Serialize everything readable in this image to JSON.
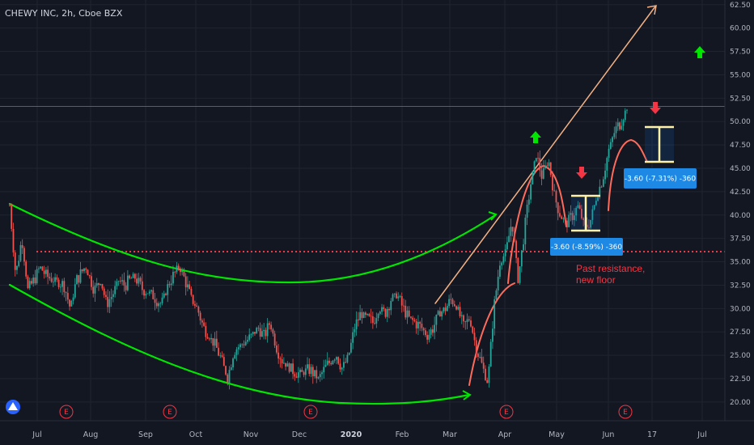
{
  "header": {
    "title": "CHEWY INC, 2h, Cboe BZX"
  },
  "chart_data": {
    "type": "line",
    "title": "CHEWY INC, 2h, Cboe BZX",
    "ylim": [
      18.0,
      63.0
    ],
    "y_ticks": [
      "20.00",
      "22.50",
      "25.00",
      "27.50",
      "30.00",
      "32.50",
      "35.00",
      "37.50",
      "40.00",
      "42.50",
      "45.00",
      "47.50",
      "50.00",
      "52.50",
      "55.00",
      "57.50",
      "60.00",
      "62.50"
    ],
    "x_ticks": [
      "Jul",
      "Aug",
      "Sep",
      "Oct",
      "Nov",
      "Dec",
      "2020",
      "Feb",
      "Mar",
      "Apr",
      "May",
      "Jun",
      "17",
      "Jul"
    ],
    "x_ticks_bold": "2020",
    "current_price": {
      "label": "51.62",
      "value": 51.62,
      "color": "#f23645"
    },
    "resistance_level": {
      "label": "36.09",
      "value": 36.09,
      "color": "#f23645"
    },
    "series": [
      {
        "values": [
          [
            0,
            41
          ],
          [
            2,
            33.5
          ],
          [
            4,
            37.5
          ],
          [
            6,
            32
          ],
          [
            8,
            33
          ],
          [
            10,
            34.5
          ],
          [
            12,
            33.5
          ],
          [
            15,
            33
          ],
          [
            18,
            32.5
          ],
          [
            20,
            30
          ],
          [
            22,
            33
          ],
          [
            25,
            34.5
          ],
          [
            28,
            32
          ],
          [
            30,
            33
          ],
          [
            32,
            30.5
          ],
          [
            34,
            31.5
          ],
          [
            36,
            33
          ],
          [
            38,
            32.5
          ],
          [
            41,
            33.5
          ],
          [
            44,
            32
          ],
          [
            47,
            31.5
          ],
          [
            50,
            30.5
          ],
          [
            53,
            33
          ],
          [
            56,
            34.5
          ],
          [
            58,
            33
          ],
          [
            60,
            31
          ],
          [
            62,
            30
          ],
          [
            64,
            28
          ],
          [
            66,
            27
          ],
          [
            68,
            26
          ],
          [
            70,
            24.5
          ],
          [
            72,
            22.5
          ],
          [
            74,
            25.5
          ],
          [
            76,
            26
          ],
          [
            78,
            26.5
          ],
          [
            80,
            27
          ],
          [
            82,
            28
          ],
          [
            84,
            27
          ],
          [
            86,
            28.5
          ],
          [
            88,
            26
          ],
          [
            90,
            24.5
          ],
          [
            93,
            23.5
          ],
          [
            96,
            23
          ],
          [
            99,
            23.5
          ],
          [
            102,
            22.5
          ],
          [
            105,
            24
          ],
          [
            108,
            25
          ],
          [
            110,
            23.5
          ],
          [
            112,
            25
          ],
          [
            114,
            28
          ],
          [
            116,
            29.5
          ],
          [
            118,
            29
          ],
          [
            120,
            28.5
          ],
          [
            122,
            30
          ],
          [
            124,
            29.5
          ],
          [
            126,
            31
          ],
          [
            128,
            31.5
          ],
          [
            130,
            30
          ],
          [
            132,
            29
          ],
          [
            134,
            28.5
          ],
          [
            136,
            28
          ],
          [
            138,
            27
          ],
          [
            140,
            28
          ],
          [
            142,
            29.5
          ],
          [
            144,
            30
          ],
          [
            146,
            31
          ],
          [
            148,
            30
          ],
          [
            150,
            28
          ],
          [
            152,
            29
          ],
          [
            154,
            26
          ],
          [
            156,
            24
          ],
          [
            158,
            22
          ],
          [
            160,
            30
          ],
          [
            162,
            35
          ],
          [
            164,
            36
          ],
          [
            166,
            39.5
          ],
          [
            168,
            33
          ],
          [
            170,
            38
          ],
          [
            172,
            43
          ],
          [
            174,
            46.5
          ],
          [
            176,
            44
          ],
          [
            178,
            46
          ],
          [
            180,
            42
          ],
          [
            182,
            40
          ],
          [
            184,
            39
          ],
          [
            186,
            40
          ],
          [
            188,
            41
          ],
          [
            190,
            38.5
          ],
          [
            192,
            39.5
          ],
          [
            194,
            42
          ],
          [
            196,
            44
          ],
          [
            198,
            47
          ],
          [
            200,
            49
          ],
          [
            202,
            50
          ],
          [
            204,
            51.5
          ]
        ]
      }
    ],
    "x_domain": [
      0,
      204
    ],
    "annotations": [
      {
        "text": "Past resistance,",
        "color": "#f23645"
      },
      {
        "text": "new floor",
        "color": "#f23645"
      },
      {
        "text": "-3.60 (-8.59%) -360",
        "bg": "#1e88e5"
      },
      {
        "text": "-3.60 (-7.31%) -360",
        "bg": "#1e88e5"
      }
    ],
    "earnings_marker": "E",
    "colors": {
      "up": "#26a69a",
      "down": "#ef5350",
      "curve": "#00e600",
      "trend": "#f4b183",
      "arc": "#ff6b5b",
      "box": "#fff2a8"
    },
    "grid": true
  }
}
